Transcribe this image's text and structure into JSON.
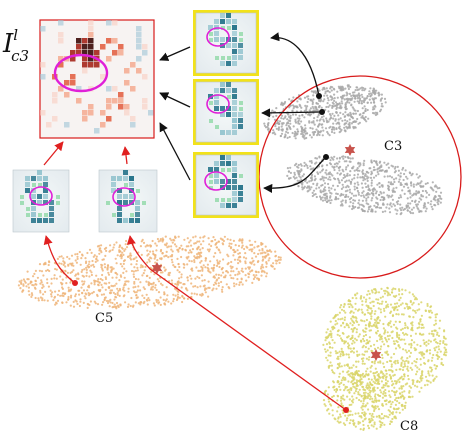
{
  "figure": {
    "title_main": "I",
    "title_sup": "l",
    "title_sub": "c3"
  },
  "clusters": [
    {
      "id": "c3",
      "label": "C3",
      "color": "#a8a8a8"
    },
    {
      "id": "c5",
      "label": "C5",
      "color": "#efb57a"
    },
    {
      "id": "c8",
      "label": "C8",
      "color": "#d9d56a"
    }
  ],
  "colors": {
    "highlight_ring": "#d81b1b",
    "selection_border": "#f2e21a",
    "focus_ellipse": "#e020d8",
    "arrow_black": "#111111",
    "arrow_red": "#e02020",
    "centroid_star": "#c8534c"
  },
  "icons": [
    "star-icon",
    "thumbnail-icon",
    "heatmap-icon"
  ]
}
